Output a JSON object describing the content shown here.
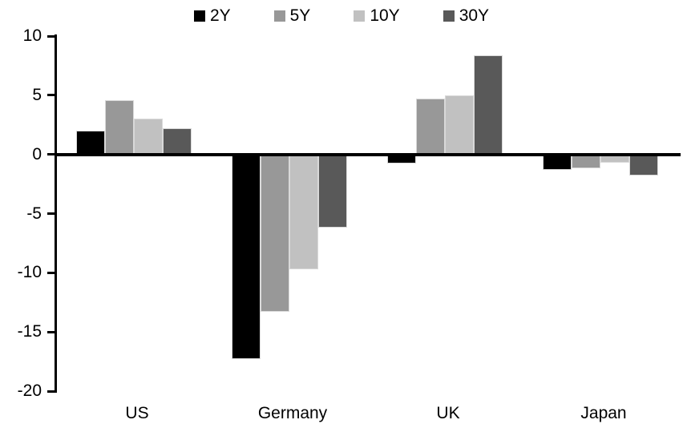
{
  "chart_data": {
    "type": "bar",
    "title": "",
    "xlabel": "",
    "ylabel": "",
    "categories": [
      "US",
      "Germany",
      "UK",
      "Japan"
    ],
    "series": [
      {
        "name": "2Y",
        "color": "#000000",
        "values": [
          2.0,
          -17.3,
          -0.8,
          -1.3
        ]
      },
      {
        "name": "5Y",
        "color": "#989898",
        "values": [
          4.6,
          -13.3,
          4.7,
          -1.2
        ]
      },
      {
        "name": "10Y",
        "color": "#c1c1c1",
        "values": [
          3.0,
          -9.7,
          5.0,
          -0.7
        ]
      },
      {
        "name": "30Y",
        "color": "#595959",
        "values": [
          2.2,
          -6.2,
          8.4,
          -1.8
        ]
      }
    ],
    "ylim": [
      -20,
      10
    ],
    "yticks": [
      10,
      5,
      0,
      -5,
      -10,
      -15,
      -20
    ],
    "grid": false,
    "legend_position": "top",
    "axis_color": "#000000",
    "background_color": "#ffffff"
  }
}
